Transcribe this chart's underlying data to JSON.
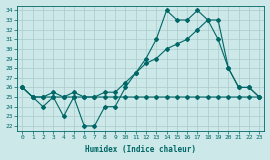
{
  "xlabel": "Humidex (Indice chaleur)",
  "bg_color": "#cce8e8",
  "line_color": "#006666",
  "grid_color": "#b0d8d8",
  "xlim": [
    -0.5,
    23.5
  ],
  "ylim": [
    21.5,
    34.5
  ],
  "xticks": [
    0,
    1,
    2,
    3,
    4,
    5,
    6,
    7,
    8,
    9,
    10,
    11,
    12,
    13,
    14,
    15,
    16,
    17,
    18,
    19,
    20,
    21,
    22,
    23
  ],
  "yticks": [
    22,
    23,
    24,
    25,
    26,
    27,
    28,
    29,
    30,
    31,
    32,
    33,
    34
  ],
  "line1_y": [
    26,
    25,
    24,
    25,
    23,
    25,
    22,
    22,
    24,
    24,
    26,
    27.5,
    29,
    31,
    34,
    33,
    33,
    34,
    33,
    31,
    28,
    26,
    26,
    25
  ],
  "line2_y": [
    26,
    25,
    25,
    25,
    25,
    25,
    25,
    25,
    25,
    25,
    25,
    25,
    25,
    25,
    25,
    25,
    25,
    25,
    25,
    25,
    25,
    25,
    25,
    25
  ],
  "line3_y": [
    26,
    25,
    25,
    25.5,
    25,
    25.5,
    25,
    25,
    25.5,
    25.5,
    26.5,
    27.5,
    28.5,
    29,
    30,
    30.5,
    31,
    32,
    33,
    33,
    28,
    26,
    26,
    25
  ]
}
